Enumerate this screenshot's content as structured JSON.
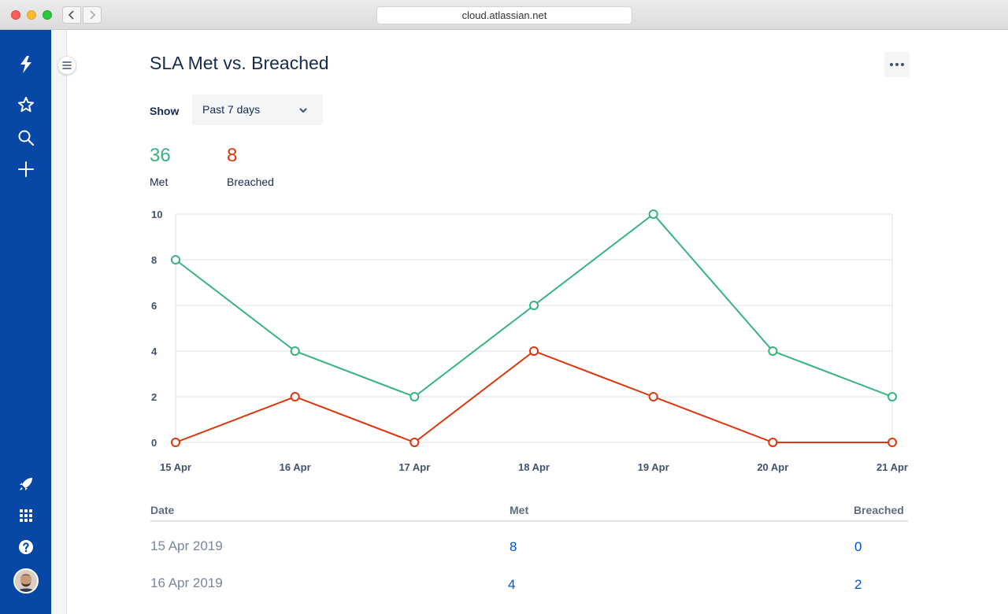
{
  "browser": {
    "url": "cloud.atlassian.net"
  },
  "nav": {
    "top_icons": [
      "jira-logo-icon",
      "star-icon",
      "search-icon",
      "plus-icon"
    ],
    "bottom_icons": [
      "rocket-icon",
      "app-switcher-icon",
      "help-icon",
      "avatar"
    ]
  },
  "page": {
    "title": "SLA Met vs. Breached",
    "show_label": "Show",
    "period_select": "Past 7 days"
  },
  "stats": {
    "met": {
      "value": "36",
      "label": "Met",
      "color": "#36B37E"
    },
    "breached": {
      "value": "8",
      "label": "Breached",
      "color": "#DE350B"
    }
  },
  "chart_data": {
    "type": "line",
    "x": [
      "15 Apr",
      "16 Apr",
      "17 Apr",
      "18 Apr",
      "19 Apr",
      "20 Apr",
      "21 Apr"
    ],
    "y_ticks": [
      "10",
      "8",
      "6",
      "4",
      "2",
      "0"
    ],
    "ylim": [
      0,
      10
    ],
    "grid": true,
    "series": [
      {
        "name": "Met",
        "color": "#36B37E",
        "values": [
          8,
          4,
          2,
          6,
          10,
          4,
          2
        ]
      },
      {
        "name": "Breached",
        "color": "#DE350B",
        "values": [
          0,
          2,
          0,
          4,
          2,
          0,
          0
        ]
      }
    ]
  },
  "table": {
    "headers": {
      "date": "Date",
      "met": "Met",
      "breached": "Breached"
    },
    "rows": [
      {
        "date": "15 Apr 2019",
        "met": "8",
        "breached": "0"
      },
      {
        "date": "16 Apr 2019",
        "met": "4",
        "breached": "2"
      }
    ]
  }
}
